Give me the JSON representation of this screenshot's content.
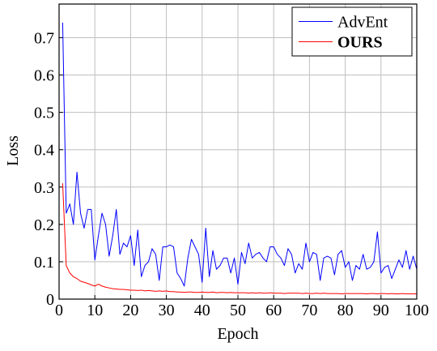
{
  "chart_data": {
    "type": "line",
    "xlabel": "Epoch",
    "ylabel": "Loss",
    "xlim": [
      0,
      100
    ],
    "ylim": [
      0,
      0.79
    ],
    "xticks": [
      0,
      10,
      20,
      30,
      40,
      50,
      60,
      70,
      80,
      90,
      100
    ],
    "yticks": [
      0,
      0.1,
      0.2,
      0.3,
      0.4,
      0.5,
      0.6,
      0.7
    ],
    "grid": true,
    "legend": "upper right",
    "x": [
      1,
      2,
      3,
      4,
      5,
      6,
      7,
      8,
      9,
      10,
      11,
      12,
      13,
      14,
      15,
      16,
      17,
      18,
      19,
      20,
      21,
      22,
      23,
      24,
      25,
      26,
      27,
      28,
      29,
      30,
      31,
      32,
      33,
      34,
      35,
      36,
      37,
      38,
      39,
      40,
      41,
      42,
      43,
      44,
      45,
      46,
      47,
      48,
      49,
      50,
      51,
      52,
      53,
      54,
      55,
      56,
      57,
      58,
      59,
      60,
      61,
      62,
      63,
      64,
      65,
      66,
      67,
      68,
      69,
      70,
      71,
      72,
      73,
      74,
      75,
      76,
      77,
      78,
      79,
      80,
      81,
      82,
      83,
      84,
      85,
      86,
      87,
      88,
      89,
      90,
      91,
      92,
      93,
      94,
      95,
      96,
      97,
      98,
      99,
      100
    ],
    "series": [
      {
        "name": "AdvEnt",
        "color": "#0000ff",
        "font_weight": "normal",
        "values": [
          0.74,
          0.23,
          0.255,
          0.2,
          0.34,
          0.23,
          0.19,
          0.24,
          0.24,
          0.105,
          0.17,
          0.23,
          0.2,
          0.115,
          0.17,
          0.24,
          0.12,
          0.15,
          0.14,
          0.17,
          0.09,
          0.185,
          0.06,
          0.09,
          0.1,
          0.135,
          0.12,
          0.05,
          0.14,
          0.14,
          0.145,
          0.14,
          0.07,
          0.055,
          0.035,
          0.11,
          0.16,
          0.14,
          0.12,
          0.045,
          0.19,
          0.06,
          0.13,
          0.08,
          0.09,
          0.11,
          0.11,
          0.07,
          0.11,
          0.04,
          0.125,
          0.095,
          0.15,
          0.11,
          0.12,
          0.125,
          0.11,
          0.1,
          0.14,
          0.14,
          0.12,
          0.11,
          0.09,
          0.135,
          0.12,
          0.07,
          0.095,
          0.08,
          0.15,
          0.1,
          0.125,
          0.12,
          0.05,
          0.11,
          0.115,
          0.11,
          0.065,
          0.12,
          0.13,
          0.085,
          0.1,
          0.05,
          0.09,
          0.08,
          0.12,
          0.08,
          0.085,
          0.1,
          0.18,
          0.07,
          0.085,
          0.09,
          0.055,
          0.08,
          0.105,
          0.085,
          0.13,
          0.08,
          0.115,
          0.08
        ]
      },
      {
        "name": "OURS",
        "color": "#ff0000",
        "font_weight": "bold",
        "values": [
          0.31,
          0.09,
          0.07,
          0.06,
          0.055,
          0.048,
          0.045,
          0.042,
          0.038,
          0.035,
          0.04,
          0.035,
          0.032,
          0.03,
          0.028,
          0.027,
          0.026,
          0.026,
          0.025,
          0.024,
          0.024,
          0.023,
          0.024,
          0.022,
          0.023,
          0.022,
          0.021,
          0.022,
          0.021,
          0.022,
          0.02,
          0.02,
          0.019,
          0.019,
          0.018,
          0.019,
          0.019,
          0.018,
          0.018,
          0.019,
          0.018,
          0.018,
          0.019,
          0.017,
          0.018,
          0.018,
          0.017,
          0.018,
          0.017,
          0.017,
          0.017,
          0.017,
          0.016,
          0.017,
          0.016,
          0.017,
          0.016,
          0.016,
          0.017,
          0.016,
          0.016,
          0.016,
          0.015,
          0.016,
          0.016,
          0.016,
          0.016,
          0.015,
          0.016,
          0.015,
          0.015,
          0.016,
          0.015,
          0.016,
          0.015,
          0.015,
          0.015,
          0.015,
          0.014,
          0.015,
          0.015,
          0.015,
          0.015,
          0.015,
          0.015,
          0.014,
          0.015,
          0.015,
          0.014,
          0.015,
          0.015,
          0.014,
          0.015,
          0.014,
          0.014,
          0.015,
          0.014,
          0.014,
          0.014,
          0.014
        ]
      }
    ]
  }
}
